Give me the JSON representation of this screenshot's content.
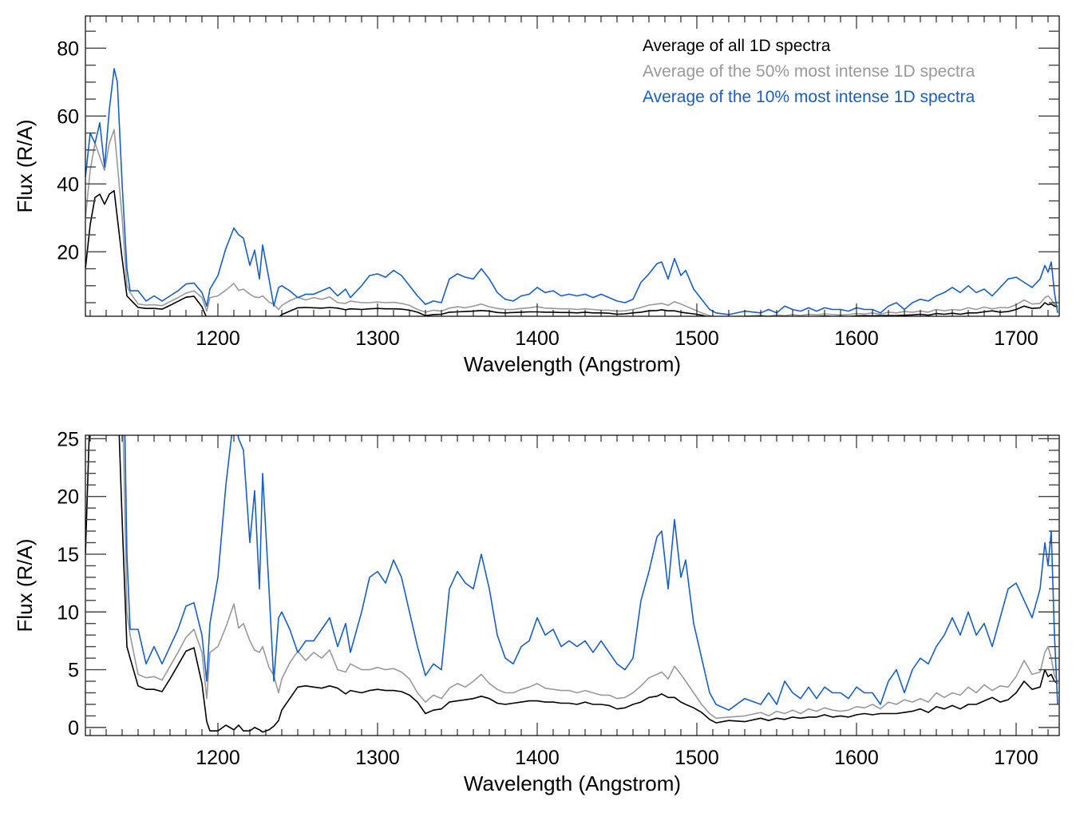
{
  "chart_data": [
    {
      "type": "line",
      "panel": "top",
      "title": "",
      "xlabel": "Wavelength (Angstrom)",
      "ylabel": "Flux (R/A)",
      "xlim": [
        1117,
        1727
      ],
      "ylim": [
        1,
        89.5
      ],
      "xticks": [
        1200,
        1300,
        1400,
        1500,
        1600,
        1700
      ],
      "xtick_labels": [
        "1200",
        "1300",
        "1400",
        "1500",
        "1600",
        "1700"
      ],
      "yticks": [
        20,
        40,
        60,
        80
      ],
      "ytick_labels": [
        "20",
        "40",
        "60",
        "80"
      ],
      "x_minor_step": 10,
      "y_minor_step": 5,
      "grid": false,
      "legend": {
        "placement": "top-right",
        "entries": [
          {
            "label": "Average of all 1D spectra",
            "color": "#000000"
          },
          {
            "label": "Average of the 50% most intense 1D spectra",
            "color": "#999999"
          },
          {
            "label": "Average of the 10% most intense 1D spectra",
            "color": "#1560c8"
          }
        ]
      },
      "series_ref": "shared"
    },
    {
      "type": "line",
      "panel": "bottom",
      "title": "",
      "xlabel": "Wavelength (Angstrom)",
      "ylabel": "Flux (R/A)",
      "xlim": [
        1117,
        1727
      ],
      "ylim": [
        -0.7,
        25.3
      ],
      "xticks": [
        1200,
        1300,
        1400,
        1500,
        1600,
        1700
      ],
      "xtick_labels": [
        "1200",
        "1300",
        "1400",
        "1500",
        "1600",
        "1700"
      ],
      "yticks": [
        0,
        5,
        10,
        15,
        20,
        25
      ],
      "ytick_labels": [
        "0",
        "5",
        "10",
        "15",
        "20",
        "25"
      ],
      "x_minor_step": 10,
      "y_minor_step": 1,
      "grid": false,
      "series_ref": "shared"
    }
  ],
  "series": {
    "x": [
      1117,
      1120,
      1123,
      1126,
      1129,
      1132,
      1135,
      1137,
      1140,
      1143,
      1145,
      1150,
      1155,
      1160,
      1165,
      1170,
      1175,
      1180,
      1185,
      1190,
      1193,
      1195,
      1200,
      1205,
      1210,
      1213,
      1216,
      1220,
      1223,
      1226,
      1228,
      1232,
      1235,
      1238,
      1240,
      1245,
      1250,
      1255,
      1260,
      1265,
      1270,
      1275,
      1280,
      1283,
      1290,
      1295,
      1300,
      1305,
      1310,
      1315,
      1320,
      1325,
      1330,
      1335,
      1340,
      1345,
      1350,
      1355,
      1360,
      1365,
      1370,
      1375,
      1380,
      1385,
      1390,
      1395,
      1400,
      1405,
      1410,
      1415,
      1420,
      1425,
      1430,
      1435,
      1440,
      1445,
      1450,
      1455,
      1460,
      1465,
      1470,
      1475,
      1478,
      1482,
      1486,
      1490,
      1493,
      1498,
      1503,
      1508,
      1512,
      1520,
      1530,
      1540,
      1545,
      1550,
      1555,
      1560,
      1565,
      1570,
      1575,
      1580,
      1585,
      1590,
      1595,
      1600,
      1605,
      1610,
      1615,
      1620,
      1625,
      1630,
      1635,
      1640,
      1645,
      1650,
      1655,
      1660,
      1665,
      1670,
      1675,
      1680,
      1685,
      1690,
      1695,
      1700,
      1705,
      1710,
      1715,
      1718,
      1720,
      1722,
      1724,
      1726
    ],
    "lines": [
      {
        "name": "Average of all 1D spectra",
        "color": "#000000",
        "y": [
          15,
          28,
          36,
          37,
          34,
          37,
          38,
          30,
          18,
          7,
          6,
          3.6,
          3.3,
          3.3,
          3.1,
          4.2,
          5.4,
          6.6,
          6.9,
          3.8,
          0.5,
          -0.3,
          -0.3,
          0.2,
          -0.2,
          0.2,
          -0.3,
          -0.3,
          0.0,
          -0.2,
          -0.4,
          -0.2,
          0.1,
          0.6,
          1.5,
          2.5,
          3.5,
          3.6,
          3.5,
          3.4,
          3.6,
          3.4,
          2.9,
          3.2,
          3.0,
          3.2,
          3.3,
          3.2,
          3.2,
          3.1,
          2.8,
          2.2,
          1.2,
          1.5,
          1.6,
          2.2,
          2.3,
          2.4,
          2.5,
          2.7,
          2.5,
          2.1,
          2.0,
          2.1,
          2.2,
          2.3,
          2.3,
          2.2,
          2.2,
          2.1,
          2.1,
          2.0,
          2.2,
          2.0,
          2.0,
          1.9,
          1.6,
          1.7,
          2.0,
          2.2,
          2.6,
          2.7,
          2.9,
          2.6,
          2.6,
          2.2,
          2.0,
          1.7,
          1.3,
          0.7,
          0.4,
          0.6,
          0.5,
          0.8,
          0.6,
          0.8,
          0.7,
          0.9,
          0.8,
          0.9,
          0.9,
          1.1,
          0.9,
          1.0,
          0.9,
          1.1,
          1.2,
          1.1,
          1.2,
          1.2,
          1.2,
          1.3,
          1.4,
          1.6,
          1.3,
          1.8,
          1.6,
          1.9,
          1.6,
          2.0,
          2.0,
          2.3,
          2.6,
          2.2,
          2.4,
          3.0,
          4.0,
          3.3,
          3.5,
          5.0,
          4.4,
          4.6,
          4.0,
          3.8
        ]
      },
      {
        "name": "Average of the 50% most intense 1D spectra",
        "color": "#999999",
        "y": [
          30,
          44,
          52,
          48,
          44,
          52,
          56,
          46,
          30,
          10,
          8,
          4.6,
          4.3,
          4.4,
          4.1,
          5.3,
          6.5,
          7.8,
          8.5,
          6.5,
          2.5,
          6.5,
          7.0,
          8.7,
          10.7,
          8.6,
          9.0,
          7.5,
          6.7,
          6.5,
          7.0,
          5.2,
          4.5,
          3.0,
          4.2,
          5.6,
          6.6,
          5.8,
          6.5,
          6.0,
          6.7,
          5.0,
          4.8,
          5.5,
          5.0,
          5.0,
          5.2,
          5.0,
          5.1,
          4.8,
          4.2,
          3.0,
          2.2,
          2.8,
          2.5,
          3.4,
          3.8,
          3.5,
          4.0,
          4.6,
          3.8,
          3.3,
          3.0,
          3.0,
          3.3,
          3.5,
          3.8,
          3.4,
          3.3,
          3.2,
          3.2,
          3.0,
          3.2,
          3.0,
          2.8,
          2.8,
          2.5,
          2.6,
          3.0,
          3.6,
          4.3,
          4.6,
          4.8,
          4.2,
          5.3,
          4.6,
          4.0,
          3.0,
          2.0,
          1.2,
          0.8,
          0.9,
          1.0,
          1.3,
          1.0,
          1.4,
          1.2,
          1.5,
          1.2,
          1.6,
          1.4,
          1.7,
          1.5,
          1.4,
          1.5,
          1.8,
          1.7,
          2.0,
          1.6,
          2.2,
          2.0,
          2.4,
          2.2,
          2.5,
          2.2,
          3.0,
          2.6,
          3.0,
          2.8,
          3.5,
          3.0,
          3.7,
          3.2,
          3.6,
          3.5,
          4.4,
          5.8,
          4.6,
          4.8,
          6.5,
          7.0,
          6.0,
          4.5,
          4.0
        ]
      },
      {
        "name": "Average of the 10% most intense 1D spectra",
        "color": "#1560c8",
        "y": [
          42,
          55,
          52,
          58,
          45,
          62,
          74,
          70,
          40,
          15,
          8.5,
          8.5,
          5.5,
          7.0,
          5.5,
          7.0,
          8.5,
          10.5,
          10.8,
          8.0,
          4.0,
          9.0,
          13.0,
          21.0,
          27.0,
          25.0,
          24.0,
          16.0,
          20.5,
          12.0,
          22.0,
          12.0,
          4.0,
          9.5,
          10.0,
          8.5,
          6.5,
          7.5,
          7.5,
          8.5,
          9.5,
          7.0,
          9.0,
          6.5,
          10.0,
          13.0,
          13.5,
          12.5,
          14.5,
          13.0,
          10.0,
          7.0,
          4.5,
          5.5,
          5.0,
          12.0,
          13.5,
          12.5,
          12.0,
          15.0,
          12.0,
          8.0,
          6.0,
          5.5,
          7.0,
          7.5,
          9.5,
          8.0,
          8.5,
          7.0,
          7.5,
          7.0,
          7.5,
          6.5,
          7.5,
          6.5,
          5.5,
          5.0,
          6.0,
          11.0,
          13.5,
          16.5,
          17.0,
          12.0,
          18.0,
          13.0,
          14.5,
          9.0,
          6.0,
          3.0,
          2.0,
          1.5,
          2.5,
          2.0,
          3.0,
          2.0,
          4.0,
          3.0,
          2.5,
          3.5,
          2.5,
          3.5,
          3.0,
          3.0,
          2.5,
          3.5,
          3.0,
          3.0,
          2.0,
          4.0,
          5.0,
          3.0,
          5.0,
          6.0,
          5.5,
          7.0,
          8.0,
          9.5,
          8.0,
          10.0,
          8.0,
          9.0,
          7.0,
          9.5,
          12.0,
          12.5,
          11.0,
          9.5,
          12.0,
          16.0,
          14.0,
          17.0,
          8.0,
          2.0
        ]
      }
    ]
  }
}
